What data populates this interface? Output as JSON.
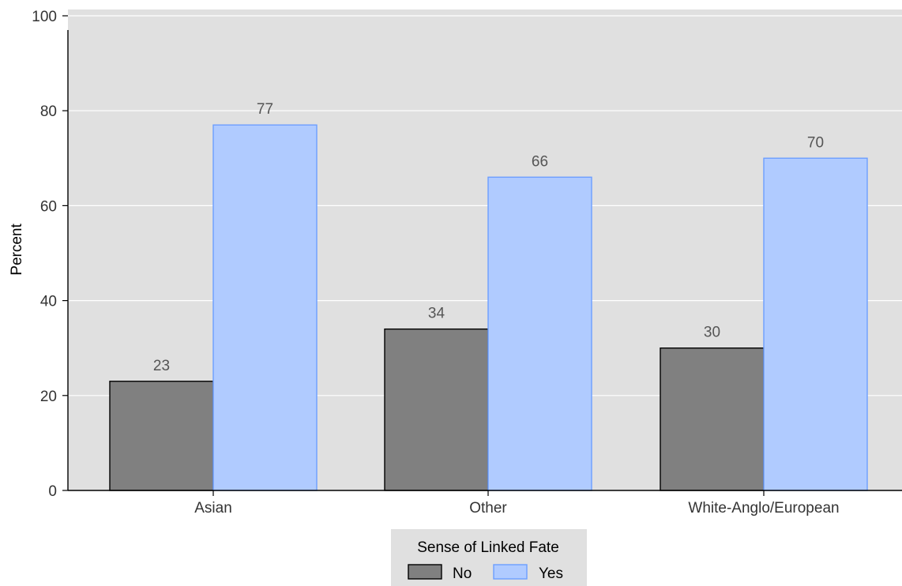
{
  "chart_data": {
    "type": "bar",
    "ylabel": "Percent",
    "xlabel": "",
    "ylim": [
      0,
      100
    ],
    "yticks": [
      0,
      20,
      40,
      60,
      80,
      100
    ],
    "grid": true,
    "categories": [
      "Asian",
      "Other",
      "White-Anglo/European"
    ],
    "series": [
      {
        "name": "No",
        "values": [
          23,
          34,
          30
        ],
        "color": "#808080"
      },
      {
        "name": "Yes",
        "values": [
          77,
          66,
          70
        ],
        "color": "#b0cbff"
      }
    ],
    "legend": {
      "title": "Sense of Linked Fate",
      "placement": "bottom"
    }
  },
  "colors": {
    "plot_background": "#e0e0e0",
    "grid": "#ffffff",
    "no_bar": "#808080",
    "no_border": "#000000",
    "yes_bar": "#b0cbff",
    "yes_border": "#6d9eff"
  }
}
